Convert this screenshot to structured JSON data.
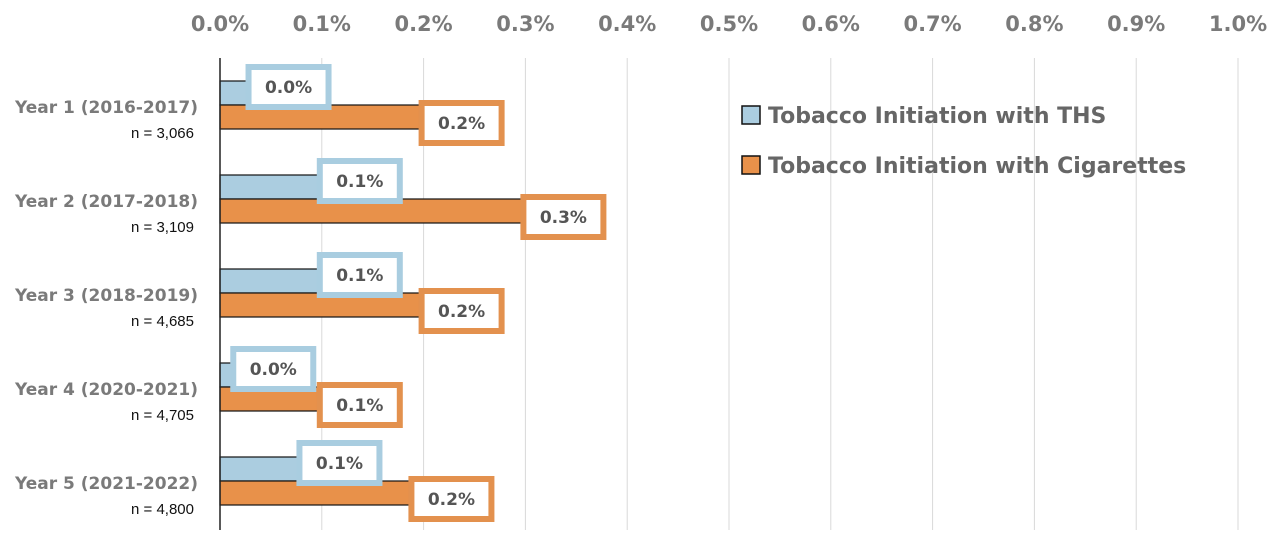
{
  "chart_data": {
    "type": "bar",
    "orientation": "horizontal",
    "categories": [
      "Year 1 (2016-2017)",
      "Year 2 (2017-2018)",
      "Year 3 (2018-2019)",
      "Year 4 (2020-2021)",
      "Year 5 (2021-2022)"
    ],
    "sample_sizes": [
      "n = 3,066",
      "n = 3,109",
      "n = 4,685",
      "n = 4,705",
      "n = 4,800"
    ],
    "series": [
      {
        "name": "Tobacco Initiation with THS",
        "color": "#abcde0",
        "label_border_color": "#a9cde0",
        "values": [
          0.0003,
          0.001,
          0.001,
          0.00015,
          0.0008
        ],
        "data_labels": [
          "0.0%",
          "0.1%",
          "0.1%",
          "0.0%",
          "0.1%"
        ]
      },
      {
        "name": "Tobacco Initiation with Cigarettes",
        "color": "#e8914a",
        "label_border_color": "#e3914e",
        "values": [
          0.002,
          0.003,
          0.002,
          0.001,
          0.0019
        ],
        "data_labels": [
          "0.2%",
          "0.3%",
          "0.2%",
          "0.1%",
          "0.2%"
        ]
      }
    ],
    "xlim": [
      0,
      0.01
    ],
    "x_ticks": [
      0,
      0.001,
      0.002,
      0.003,
      0.004,
      0.005,
      0.006,
      0.007,
      0.008,
      0.009,
      0.01
    ],
    "x_tick_labels": [
      "0.0%",
      "0.1%",
      "0.2%",
      "0.3%",
      "0.4%",
      "0.5%",
      "0.6%",
      "0.7%",
      "0.8%",
      "0.9%",
      "1.0%"
    ],
    "x_axis_position": "top",
    "grid": true,
    "legend_position": "top-right"
  }
}
